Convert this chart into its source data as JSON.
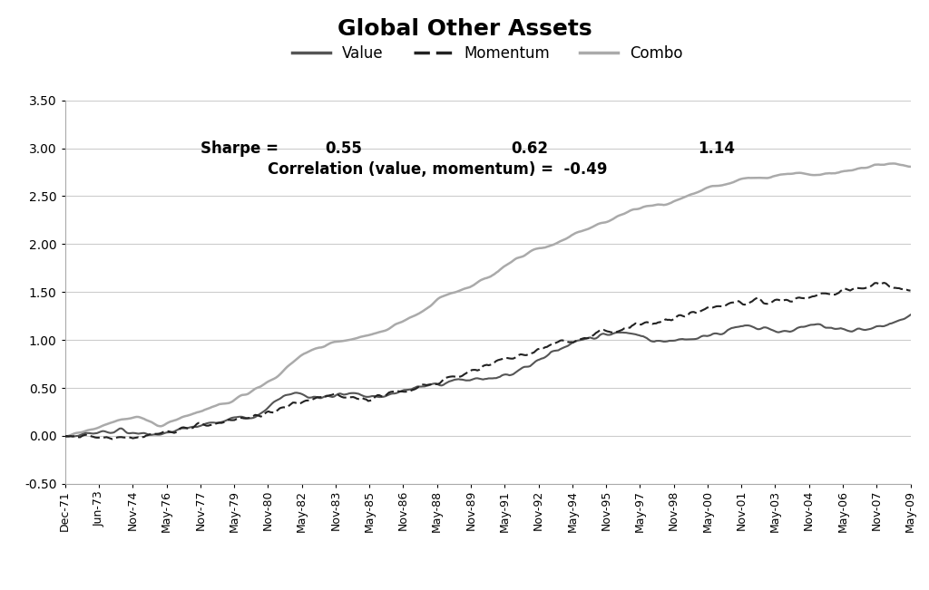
{
  "title": "Global Other Assets",
  "legend_entries": [
    "Value",
    "Momentum",
    "Combo"
  ],
  "sharpe_label": "Sharpe =",
  "sharpe_values": [
    "0.55",
    "0.62",
    "1.14"
  ],
  "correlation_label": "Correlation (value, momentum) =",
  "correlation_value": "-0.49",
  "ylim": [
    -0.5,
    3.5
  ],
  "yticks": [
    -0.5,
    0.0,
    0.5,
    1.0,
    1.5,
    2.0,
    2.5,
    3.0,
    3.5
  ],
  "value_color": "#555555",
  "momentum_color": "#222222",
  "combo_color": "#aaaaaa",
  "background_color": "#ffffff",
  "title_fontsize": 18,
  "annotation_fontsize": 12,
  "xtick_labels": [
    "Dec-71",
    "Jun-73",
    "Nov-74",
    "May-76",
    "Nov-77",
    "May-79",
    "Nov-80",
    "May-82",
    "Nov-83",
    "May-85",
    "Nov-86",
    "May-88",
    "Nov-89",
    "May-91",
    "Nov-92",
    "May-94",
    "Nov-95",
    "May-97",
    "Nov-98",
    "May-00",
    "Nov-01",
    "May-03",
    "Nov-04",
    "May-06",
    "Nov-07",
    "May-09"
  ]
}
